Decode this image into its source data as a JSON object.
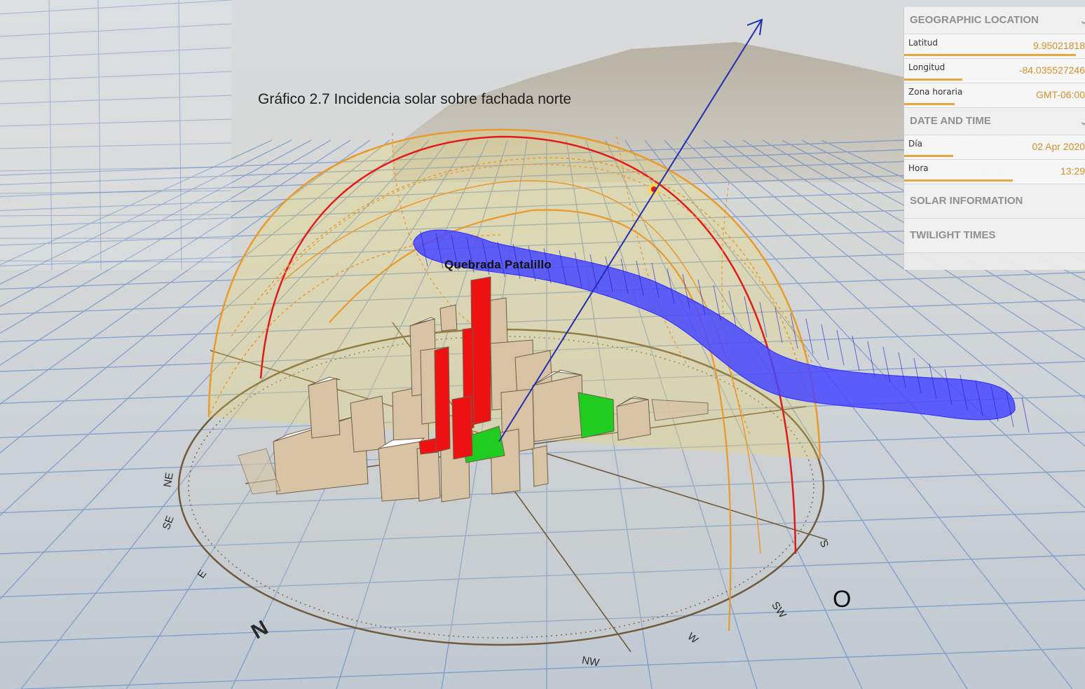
{
  "caption": "Gráfico 2.7 Incidencia solar sobre fachada norte",
  "stream_label": "Quebrada Patalillo",
  "west_label": "O",
  "compass_labels": [
    "N",
    "NE",
    "E",
    "SE",
    "S",
    "SW",
    "W",
    "NW"
  ],
  "panel": {
    "geo": {
      "title": "GEOGRAPHIC LOCATION",
      "rows": [
        {
          "label": "Latitud",
          "value": "9.95021818",
          "fill": 0.95
        },
        {
          "label": "Longitud",
          "value": "-84.035527246",
          "fill": 0.32
        },
        {
          "label": "Zona horaria",
          "value": "GMT-06:00",
          "fill": 0.28
        }
      ]
    },
    "datetime": {
      "title": "DATE AND TIME",
      "rows": [
        {
          "label": "Día",
          "value": "02 Apr 2020",
          "fill": 0.27
        },
        {
          "label": "Hora",
          "value": "13:29",
          "fill": 0.6
        }
      ]
    },
    "solar": {
      "title": "SOLAR INFORMATION"
    },
    "twilight": {
      "title": "TWILIGHT TIMES"
    }
  },
  "colors": {
    "sun_path": "#e11b1b",
    "dome": "#e99a2c",
    "stream": "#3a3aff",
    "sun_vector": "#1f2fb0",
    "buildings": "#d8c3a5",
    "highlight": "#ee1111",
    "ground": "#1fcc1f",
    "accent": "#e7a640"
  }
}
